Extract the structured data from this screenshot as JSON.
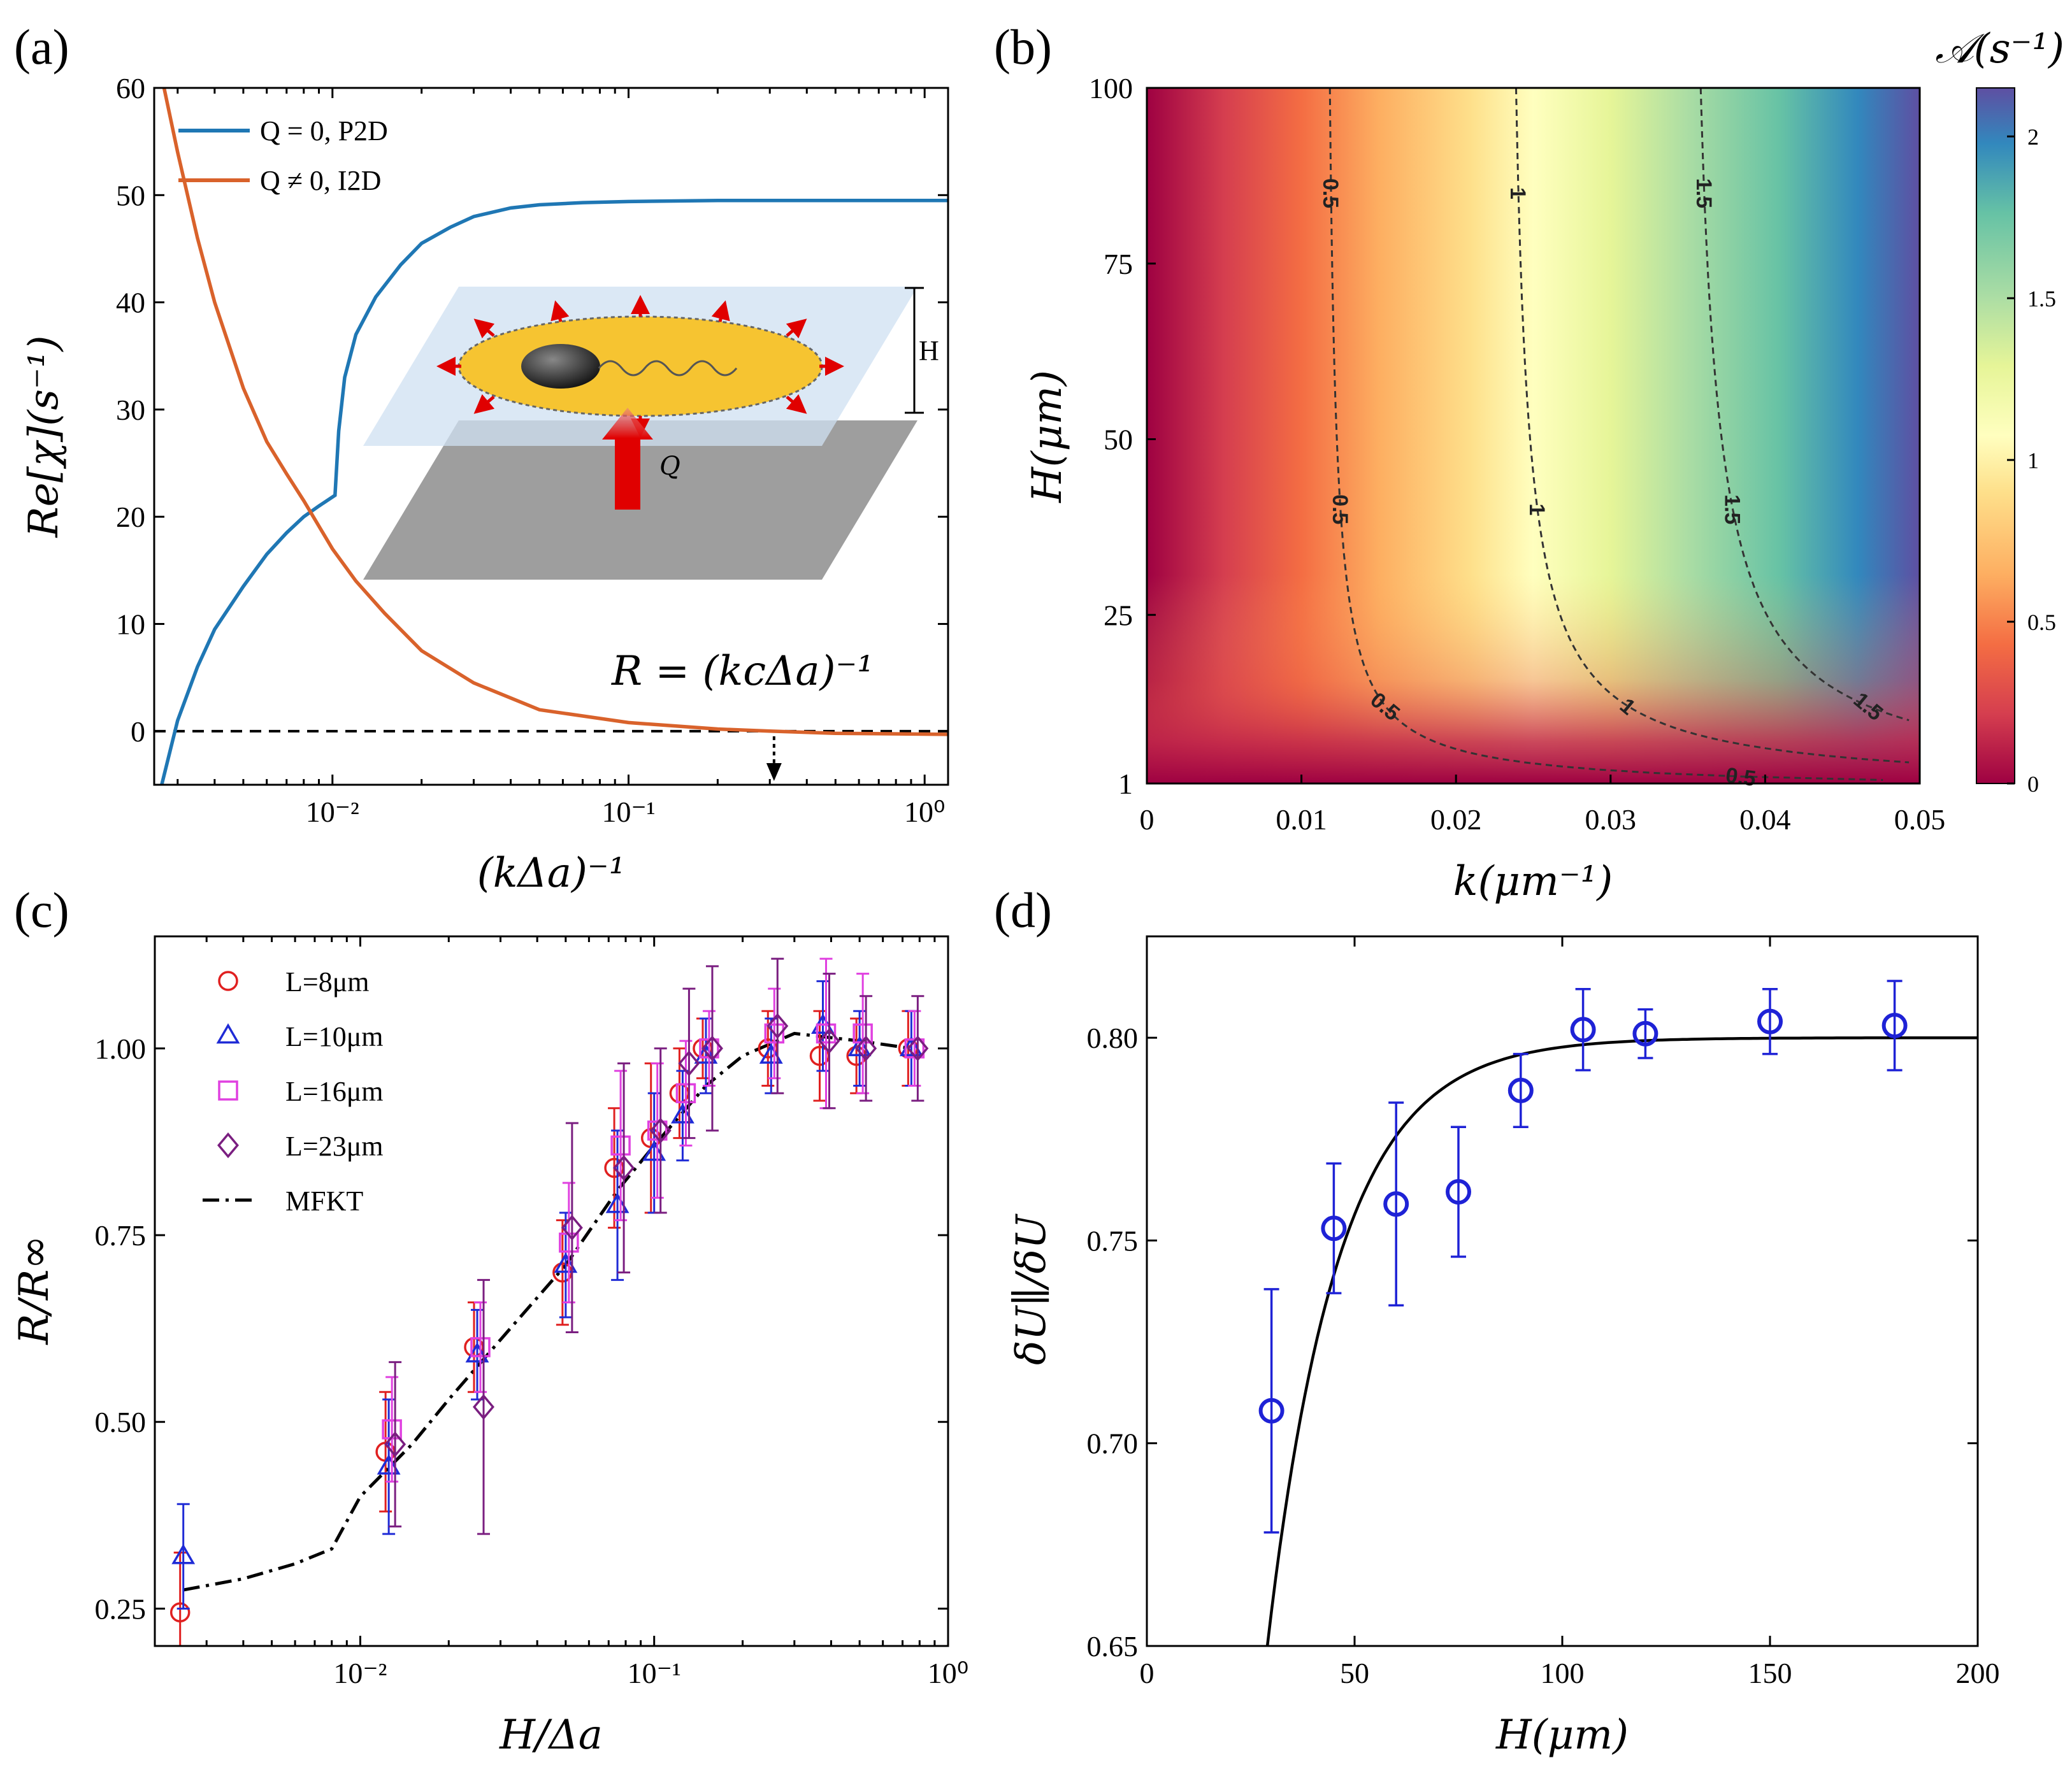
{
  "chart_data": [
    {
      "panel": "(a)",
      "type": "line",
      "xscale": "log",
      "xlabel": "(kΔa)⁻¹",
      "ylabel": "Re[χ](s⁻¹)",
      "xlim": [
        0.0025,
        1.2
      ],
      "ylim": [
        -5,
        60
      ],
      "xticks": [
        0.01,
        0.1,
        1
      ],
      "xtick_labels": [
        "10⁻²",
        "10⁻¹",
        "10⁰"
      ],
      "yticks": [
        0,
        10,
        20,
        30,
        40,
        50,
        60
      ],
      "series": [
        {
          "name": "Q = 0, P2D",
          "color": "#1f77b4",
          "x": [
            0.00265,
            0.003,
            0.0035,
            0.004,
            0.005,
            0.006,
            0.007,
            0.008,
            0.009,
            0.0102,
            0.0105,
            0.011,
            0.012,
            0.014,
            0.017,
            0.02,
            0.025,
            0.03,
            0.04,
            0.05,
            0.07,
            0.1,
            0.2,
            0.5,
            1.2
          ],
          "y": [
            -5,
            1,
            6,
            9.5,
            13.5,
            16.5,
            18.5,
            20,
            21,
            22,
            28,
            33,
            37,
            40.5,
            43.5,
            45.5,
            47,
            48,
            48.8,
            49.1,
            49.3,
            49.4,
            49.5,
            49.5,
            49.5
          ]
        },
        {
          "name": "Q ≠ 0, I2D",
          "color": "#d9622b",
          "x": [
            0.0027,
            0.003,
            0.0035,
            0.004,
            0.005,
            0.006,
            0.007,
            0.008,
            0.01,
            0.012,
            0.015,
            0.02,
            0.03,
            0.05,
            0.1,
            0.2,
            0.3,
            0.5,
            1.2
          ],
          "y": [
            60,
            54,
            46,
            40,
            32,
            27,
            24,
            21.5,
            17,
            14,
            11,
            7.5,
            4.5,
            2,
            0.8,
            0.2,
            0,
            -0.2,
            -0.3
          ]
        }
      ],
      "annotations": [
        "R = (kcΔa)⁻¹",
        "H",
        "Q"
      ],
      "zero_line": 0,
      "arrow_x": 0.31
    },
    {
      "panel": "(b)",
      "type": "heatmap",
      "xlabel": "k(μm⁻¹)",
      "ylabel": "H(μm)",
      "xlim": [
        0,
        0.05
      ],
      "ylim": [
        1,
        100
      ],
      "xticks": [
        0,
        0.01,
        0.02,
        0.03,
        0.04,
        0.05
      ],
      "xtick_labels": [
        "0",
        "0.01",
        "0.02",
        "0.03",
        "0.04",
        "0.05"
      ],
      "yticks": [
        1,
        25,
        50,
        75,
        100
      ],
      "colorbar_label": "𝒜(s⁻¹)",
      "colorbar_range": [
        0,
        2.15
      ],
      "colorbar_ticks": [
        0,
        0.5,
        1,
        1.5,
        2
      ],
      "colorbar_tick_labels": [
        "0",
        "0.5",
        "1",
        "1.5",
        "2"
      ],
      "contours": [
        {
          "level": "0.5",
          "k_inf": 0.0115
        },
        {
          "level": "1",
          "k_inf": 0.0232
        },
        {
          "level": "1.5",
          "k_inf": 0.0348
        }
      ]
    },
    {
      "panel": "(c)",
      "type": "scatter",
      "xscale": "log",
      "xlabel": "H/Δa",
      "ylabel": "R/R∞",
      "xlim": [
        0.002,
        1
      ],
      "ylim": [
        0.2,
        1.15
      ],
      "xticks": [
        0.01,
        0.1,
        1
      ],
      "xtick_labels": [
        "10⁻²",
        "10⁻¹",
        "10⁰"
      ],
      "yticks": [
        0.25,
        0.5,
        0.75,
        1.0
      ],
      "ytick_labels": [
        "0.25",
        "0.50",
        "0.75",
        "1.00"
      ],
      "series": [
        {
          "name": "L=8μm",
          "marker": "circle",
          "color": "#e02020",
          "x": [
            0.0025,
            0.0125,
            0.025,
            0.05,
            0.075,
            0.1,
            0.125,
            0.15,
            0.25,
            0.375,
            0.5,
            0.75
          ],
          "y": [
            0.245,
            0.46,
            0.6,
            0.7,
            0.84,
            0.88,
            0.94,
            1.0,
            1.0,
            0.99,
            0.99,
            1.0
          ],
          "err": [
            0.08,
            0.08,
            0.06,
            0.07,
            0.08,
            0.1,
            0.06,
            0.04,
            0.05,
            0.06,
            0.05,
            0.05
          ]
        },
        {
          "name": "L=10μm",
          "marker": "triangle",
          "color": "#1f2bd6",
          "x": [
            0.0025,
            0.0125,
            0.025,
            0.05,
            0.075,
            0.1,
            0.125,
            0.15,
            0.25,
            0.375,
            0.5,
            0.75
          ],
          "y": [
            0.32,
            0.44,
            0.59,
            0.71,
            0.79,
            0.86,
            0.91,
            0.99,
            0.99,
            1.03,
            1.0,
            1.0
          ],
          "err": [
            0.07,
            0.09,
            0.06,
            0.07,
            0.1,
            0.08,
            0.06,
            0.05,
            0.05,
            0.06,
            0.05,
            0.05
          ]
        },
        {
          "name": "L=16μm",
          "marker": "square",
          "color": "#e040e0",
          "x": [
            0.0125,
            0.025,
            0.05,
            0.075,
            0.1,
            0.125,
            0.15,
            0.25,
            0.375,
            0.5,
            0.75
          ],
          "y": [
            0.49,
            0.6,
            0.74,
            0.87,
            0.89,
            0.94,
            1.0,
            1.02,
            1.02,
            1.02,
            1.0
          ],
          "err": [
            0.07,
            0.06,
            0.08,
            0.1,
            0.09,
            0.07,
            0.05,
            0.06,
            0.1,
            0.08,
            0.05
          ]
        },
        {
          "name": "L=23μm",
          "marker": "diamond",
          "color": "#7a1e80",
          "x": [
            0.0125,
            0.025,
            0.05,
            0.075,
            0.1,
            0.125,
            0.15,
            0.25,
            0.375,
            0.5,
            0.75
          ],
          "y": [
            0.47,
            0.52,
            0.76,
            0.84,
            0.89,
            0.98,
            1.0,
            1.03,
            1.01,
            1.0,
            1.0
          ],
          "err": [
            0.11,
            0.17,
            0.14,
            0.14,
            0.11,
            0.1,
            0.11,
            0.09,
            0.09,
            0.07,
            0.07
          ]
        },
        {
          "name": "MFKT",
          "type": "line",
          "color": "#000000",
          "x": [
            0.0025,
            0.004,
            0.006,
            0.008,
            0.01,
            0.015,
            0.02,
            0.03,
            0.05,
            0.075,
            0.1,
            0.15,
            0.2,
            0.3,
            0.5,
            0.75
          ],
          "y": [
            0.275,
            0.29,
            0.31,
            0.33,
            0.4,
            0.47,
            0.53,
            0.61,
            0.71,
            0.81,
            0.87,
            0.95,
            0.99,
            1.02,
            1.01,
            1.0
          ]
        }
      ]
    },
    {
      "panel": "(d)",
      "type": "scatter",
      "xlabel": "H(μm)",
      "ylabel": "δU∥/δU",
      "xlim": [
        0,
        200
      ],
      "ylim": [
        0.65,
        0.825
      ],
      "xticks": [
        0,
        50,
        100,
        150,
        200
      ],
      "yticks": [
        0.65,
        0.7,
        0.75,
        0.8
      ],
      "ytick_labels": [
        "0.65",
        "0.70",
        "0.75",
        "0.80"
      ],
      "series": [
        {
          "name": "data",
          "marker": "circle",
          "color": "#1e22d6",
          "x": [
            30,
            45,
            60,
            75,
            90,
            105,
            120,
            150,
            180
          ],
          "y": [
            0.708,
            0.753,
            0.759,
            0.762,
            0.787,
            0.802,
            0.801,
            0.804,
            0.803
          ],
          "err": [
            0.03,
            0.016,
            0.025,
            0.016,
            0.009,
            0.01,
            0.006,
            0.008,
            0.011
          ]
        },
        {
          "name": "fit",
          "type": "line",
          "color": "#000000",
          "H0": 29,
          "tau": 17,
          "amp": 0.15,
          "plateau": 0.8
        }
      ]
    }
  ]
}
